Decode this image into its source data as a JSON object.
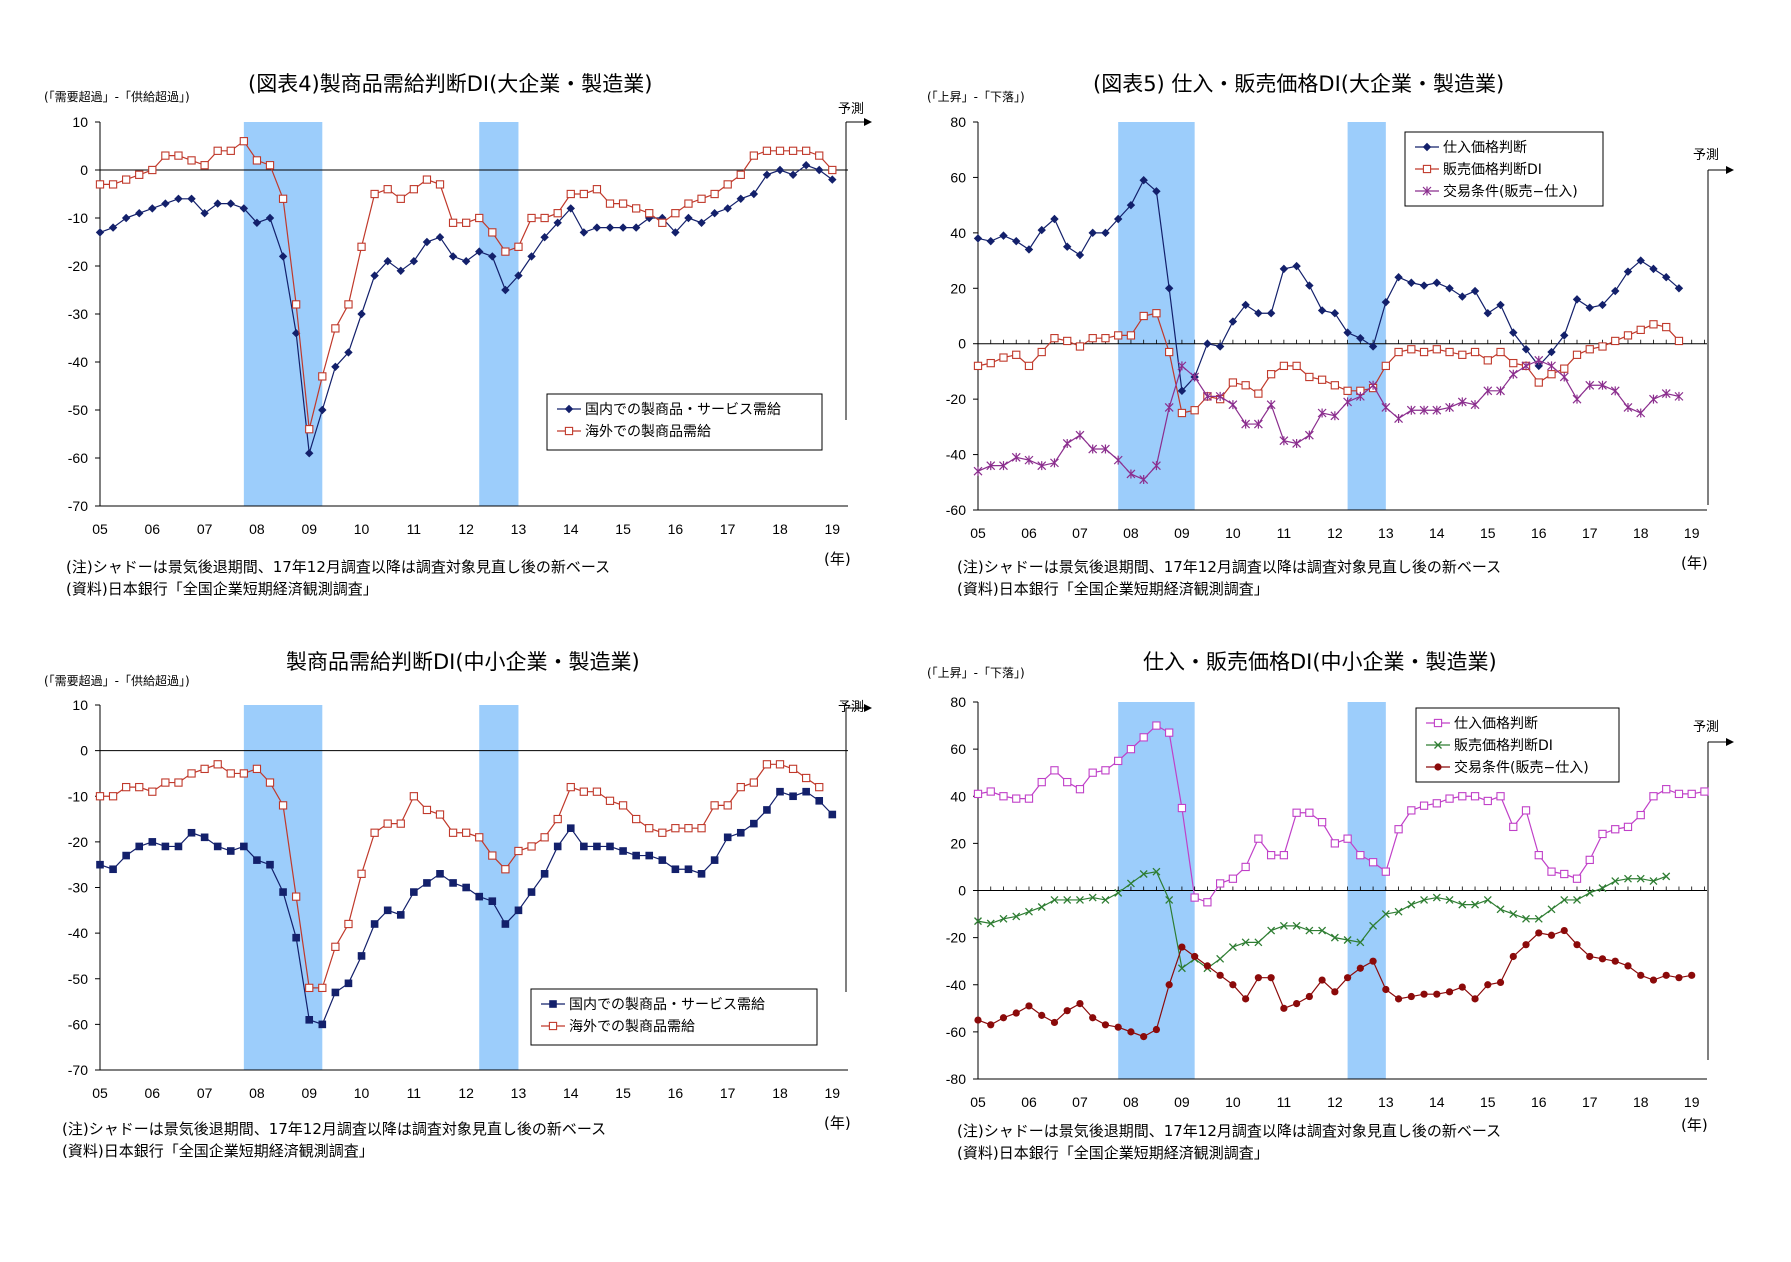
{
  "colors": {
    "navy": "#13206b",
    "red": "#c0392b",
    "purple": "#8b2e8e",
    "magenta": "#c040c8",
    "green": "#2e7d32",
    "maroon": "#8b0a0a",
    "shade": "#9ccdfb"
  },
  "common": {
    "note_line1": "(注)シャドーは景気後退期間、17年12月調査以降は調査対象見直し後の新ベース",
    "note_line2": "(資料)日本銀行「全国企業短期経済観測調査」",
    "nen": "(年)",
    "yosoku": "予測",
    "x_ticks": [
      "05",
      "06",
      "07",
      "08",
      "09",
      "10",
      "11",
      "12",
      "13",
      "14",
      "15",
      "16",
      "17",
      "18",
      "19"
    ]
  },
  "chart_data": [
    {
      "type": "line",
      "title": "(図表4)製商品需給判断DI(大企業・製造業)",
      "unit": "(「需要超過」-「供給超過」)",
      "ylim": [
        -70,
        10
      ],
      "y_ticks": [
        10,
        0,
        -10,
        -20,
        -30,
        -40,
        -50,
        -60,
        -70
      ],
      "shading": [
        [
          2007.75,
          2009.25
        ],
        [
          2012.25,
          2013
        ]
      ],
      "legend": "bottom-right",
      "series": [
        {
          "name": "国内での製商品・サービス需給",
          "marker": "diamond",
          "color": "navy",
          "values": [
            -13,
            -12,
            -10,
            -9,
            -8,
            -7,
            -6,
            -6,
            -9,
            -7,
            -7,
            -8,
            -11,
            -10,
            -18,
            -34,
            -59,
            -50,
            -41,
            -38,
            -30,
            -22,
            -19,
            -21,
            -19,
            -15,
            -14,
            -18,
            -19,
            -17,
            -18,
            -25,
            -22,
            -18,
            -14,
            -11,
            -8,
            -13,
            -12,
            -12,
            -12,
            -12,
            -10,
            -10,
            -13,
            -10,
            -11,
            -9,
            -8,
            -6,
            -5,
            -1,
            0,
            -1,
            1,
            0,
            -2
          ]
        },
        {
          "name": "海外での製商品需給",
          "marker": "square",
          "color": "red",
          "values": [
            -3,
            -3,
            -2,
            -1,
            0,
            3,
            3,
            2,
            1,
            4,
            4,
            6,
            2,
            1,
            -6,
            -28,
            -54,
            -43,
            -33,
            -28,
            -16,
            -5,
            -4,
            -6,
            -4,
            -2,
            -3,
            -11,
            -11,
            -10,
            -13,
            -17,
            -16,
            -10,
            -10,
            -9,
            -5,
            -5,
            -4,
            -7,
            -7,
            -8,
            -9,
            -11,
            -9,
            -7,
            -6,
            -5,
            -3,
            -1,
            3,
            4,
            4,
            4,
            4,
            3,
            0
          ]
        }
      ]
    },
    {
      "type": "line",
      "title": "(図表5) 仕入・販売価格DI(大企業・製造業)",
      "unit": "(「上昇」-「下落」)",
      "ylim": [
        -60,
        80
      ],
      "y_ticks": [
        80,
        60,
        40,
        20,
        0,
        -20,
        -40,
        -60
      ],
      "shading": [
        [
          2007.75,
          2009.25
        ],
        [
          2012.25,
          2013
        ]
      ],
      "legend": "top-right",
      "series": [
        {
          "name": "仕入価格判断",
          "marker": "diamond",
          "color": "navy",
          "values": [
            38,
            37,
            39,
            37,
            34,
            41,
            45,
            35,
            32,
            40,
            40,
            45,
            50,
            59,
            55,
            20,
            -17,
            -12,
            0,
            -1,
            8,
            14,
            11,
            11,
            27,
            28,
            21,
            12,
            11,
            4,
            2,
            -1,
            15,
            24,
            22,
            21,
            22,
            20,
            17,
            19,
            11,
            14,
            4,
            -2,
            -8,
            -3,
            3,
            16,
            13,
            14,
            19,
            26,
            30,
            27,
            24,
            20
          ]
        },
        {
          "name": "販売価格判断DI",
          "marker": "square",
          "color": "red",
          "values": [
            -8,
            -7,
            -5,
            -4,
            -8,
            -3,
            2,
            1,
            -1,
            2,
            2,
            3,
            3,
            10,
            11,
            -3,
            -25,
            -24,
            -19,
            -20,
            -14,
            -15,
            -18,
            -11,
            -8,
            -8,
            -12,
            -13,
            -15,
            -17,
            -17,
            -16,
            -8,
            -3,
            -2,
            -3,
            -2,
            -3,
            -4,
            -3,
            -6,
            -3,
            -7,
            -8,
            -14,
            -11,
            -9,
            -4,
            -2,
            -1,
            1,
            3,
            5,
            7,
            6,
            1
          ]
        },
        {
          "name": "交易条件(販売−仕入)",
          "marker": "star",
          "color": "purple",
          "values": [
            -46,
            -44,
            -44,
            -41,
            -42,
            -44,
            -43,
            -36,
            -33,
            -38,
            -38,
            -42,
            -47,
            -49,
            -44,
            -23,
            -8,
            -12,
            -19,
            -19,
            -22,
            -29,
            -29,
            -22,
            -35,
            -36,
            -33,
            -25,
            -26,
            -21,
            -19,
            -15,
            -23,
            -27,
            -24,
            -24,
            -24,
            -23,
            -21,
            -22,
            -17,
            -17,
            -11,
            -8,
            -6,
            -8,
            -12,
            -20,
            -15,
            -15,
            -17,
            -23,
            -25,
            -20,
            -18,
            -19
          ]
        }
      ]
    },
    {
      "type": "line",
      "title": "製商品需給判断DI(中小企業・製造業)",
      "unit": "(「需要超過」-「供給超過」)",
      "ylim": [
        -70,
        10
      ],
      "y_ticks": [
        10,
        0,
        -10,
        -20,
        -30,
        -40,
        -50,
        -60,
        -70
      ],
      "shading": [
        [
          2007.75,
          2009.25
        ],
        [
          2012.25,
          2013
        ]
      ],
      "legend": "bottom-right",
      "series": [
        {
          "name": "国内での製商品・サービス需給",
          "marker": "square-filled",
          "color": "navy",
          "values": [
            -25,
            -26,
            -23,
            -21,
            -20,
            -21,
            -21,
            -18,
            -19,
            -21,
            -22,
            -21,
            -24,
            -25,
            -31,
            -41,
            -59,
            -60,
            -53,
            -51,
            -45,
            -38,
            -35,
            -36,
            -31,
            -29,
            -27,
            -29,
            -30,
            -32,
            -33,
            -38,
            -35,
            -31,
            -27,
            -21,
            -17,
            -21,
            -21,
            -21,
            -22,
            -23,
            -23,
            -24,
            -26,
            -26,
            -27,
            -24,
            -19,
            -18,
            -16,
            -13,
            -9,
            -10,
            -9,
            -11,
            -14
          ]
        },
        {
          "name": "海外での製商品需給",
          "marker": "square",
          "color": "red",
          "values": [
            -10,
            -10,
            -8,
            -8,
            -9,
            -7,
            -7,
            -5,
            -4,
            -3,
            -5,
            -5,
            -4,
            -7,
            -12,
            -32,
            -52,
            -52,
            -43,
            -38,
            -27,
            -18,
            -16,
            -16,
            -10,
            -13,
            -14,
            -18,
            -18,
            -19,
            -23,
            -26,
            -22,
            -21,
            -19,
            -15,
            -8,
            -9,
            -9,
            -11,
            -12,
            -15,
            -17,
            -18,
            -17,
            -17,
            -17,
            -12,
            -12,
            -8,
            -7,
            -3,
            -3,
            -4,
            -6,
            -8
          ]
        }
      ]
    },
    {
      "type": "line",
      "title": "仕入・販売価格DI(中小企業・製造業)",
      "unit": "(「上昇」-「下落」)",
      "ylim": [
        -80,
        80
      ],
      "y_ticks": [
        80,
        60,
        40,
        20,
        0,
        -20,
        -40,
        -60,
        -80
      ],
      "shading": [
        [
          2007.75,
          2009.25
        ],
        [
          2012.25,
          2013
        ]
      ],
      "legend": "top-right",
      "series": [
        {
          "name": "仕入価格判断",
          "marker": "square",
          "color": "magenta",
          "values": [
            41,
            42,
            40,
            39,
            39,
            46,
            51,
            46,
            43,
            50,
            51,
            55,
            60,
            65,
            70,
            67,
            35,
            -3,
            -5,
            3,
            5,
            10,
            22,
            15,
            15,
            33,
            33,
            29,
            20,
            22,
            15,
            12,
            8,
            26,
            34,
            36,
            37,
            39,
            40,
            40,
            38,
            40,
            27,
            34,
            15,
            8,
            7,
            5,
            13,
            24,
            26,
            27,
            32,
            40,
            43,
            41,
            41,
            42
          ]
        },
        {
          "name": "販売価格判断DI",
          "marker": "x",
          "color": "green",
          "values": [
            -13,
            -14,
            -12,
            -11,
            -9,
            -7,
            -4,
            -4,
            -4,
            -3,
            -4,
            -1,
            3,
            7,
            8,
            -4,
            -33,
            -29,
            -33,
            -29,
            -24,
            -22,
            -22,
            -17,
            -15,
            -15,
            -17,
            -17,
            -20,
            -21,
            -22,
            -15,
            -10,
            -9,
            -6,
            -4,
            -3,
            -4,
            -6,
            -6,
            -4,
            -8,
            -10,
            -12,
            -12,
            -8,
            -4,
            -4,
            -1,
            1,
            4,
            5,
            5,
            4,
            6
          ]
        },
        {
          "name": "交易条件(販売−仕入)",
          "marker": "circle",
          "color": "maroon",
          "values": [
            -55,
            -57,
            -54,
            -52,
            -49,
            -53,
            -56,
            -51,
            -48,
            -54,
            -57,
            -58,
            -60,
            -62,
            -59,
            -40,
            -24,
            -28,
            -32,
            -36,
            -40,
            -46,
            -37,
            -37,
            -50,
            -48,
            -45,
            -38,
            -43,
            -37,
            -33,
            -30,
            -42,
            -46,
            -45,
            -44,
            -44,
            -43,
            -41,
            -46,
            -40,
            -39,
            -28,
            -23,
            -18,
            -19,
            -17,
            -23,
            -28,
            -29,
            -30,
            -32,
            -36,
            -38,
            -36,
            -37,
            -36
          ]
        }
      ]
    }
  ]
}
